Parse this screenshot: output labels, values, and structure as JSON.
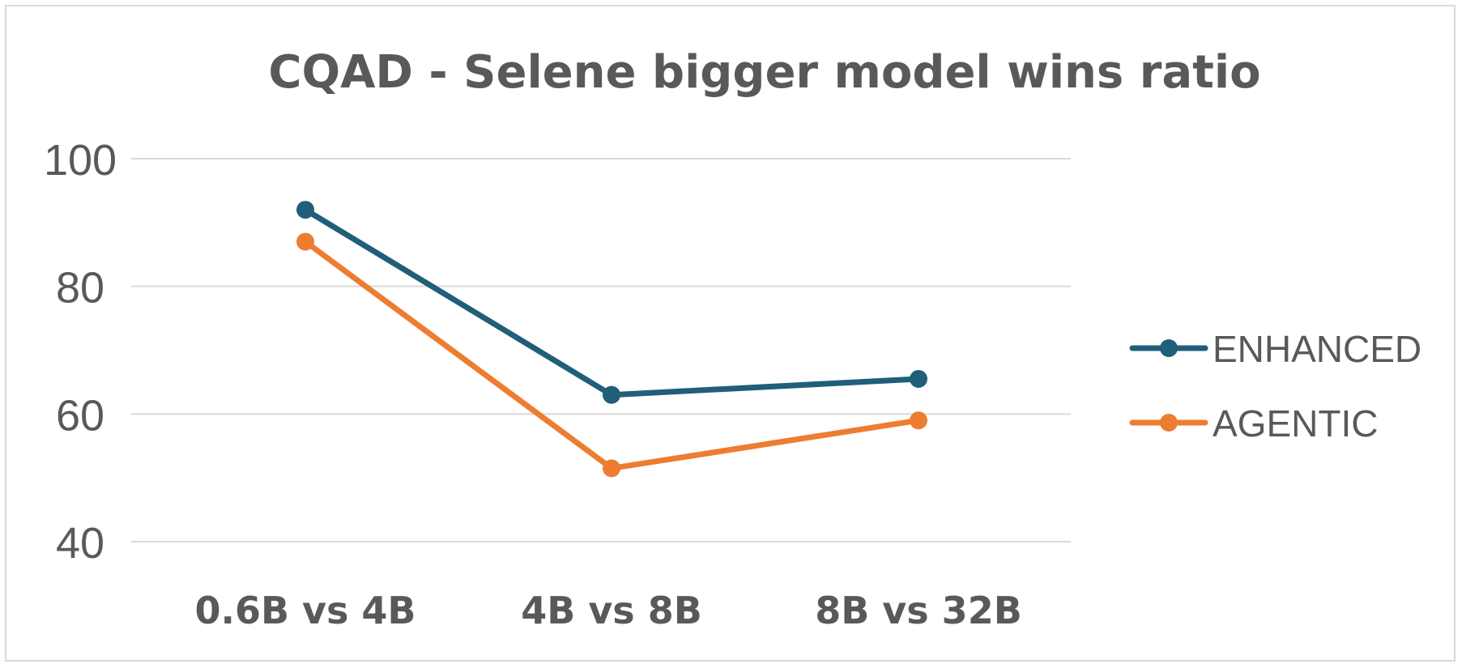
{
  "chart_data": {
    "type": "line",
    "title": "CQAD - Selene bigger model wins ratio",
    "categories": [
      "0.6B vs 4B",
      "4B vs 8B",
      "8B vs 32B"
    ],
    "ylim": [
      40,
      100
    ],
    "yticks": [
      40,
      60,
      80,
      100
    ],
    "grid": true,
    "legend_position": "right",
    "series": [
      {
        "name": "ENHANCED",
        "values": [
          92,
          63,
          65.5
        ],
        "color": "#1f5f7a"
      },
      {
        "name": "AGENTIC",
        "values": [
          87,
          51.5,
          59
        ],
        "color": "#ed7d31"
      }
    ]
  }
}
